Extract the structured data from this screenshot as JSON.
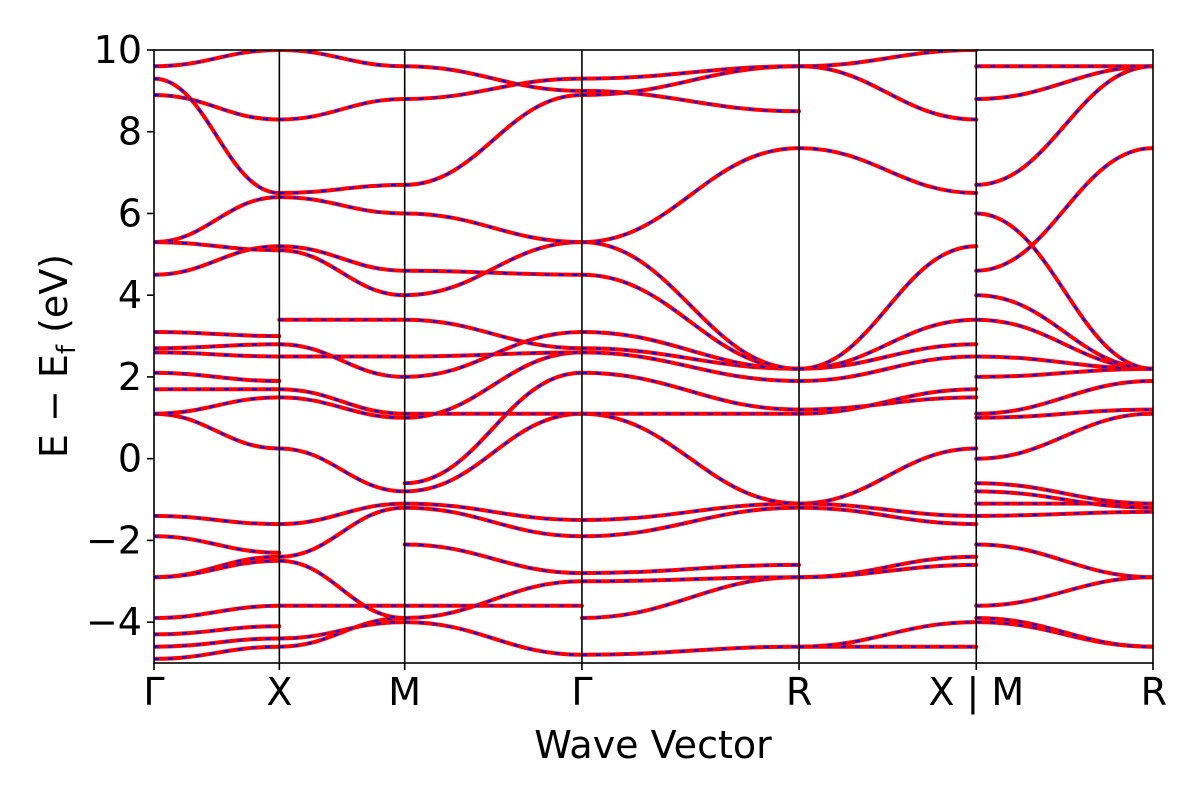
{
  "chart_data": {
    "type": "line",
    "xlabel": "Wave Vector",
    "ylabel": {
      "main": "E − E",
      "subscript": "f",
      "unit": " (eV)"
    },
    "ylim": [
      -5,
      10
    ],
    "yticks": [
      10,
      8,
      6,
      4,
      2,
      0,
      -2,
      -4
    ],
    "ytick_labels": [
      "10",
      "8",
      "6",
      "4",
      "2",
      "0",
      "−2",
      "−4"
    ],
    "kpoints": [
      {
        "label": "Γ",
        "pos": 0.0
      },
      {
        "label": "X",
        "pos": 1.0
      },
      {
        "label": "M",
        "pos": 2.0
      },
      {
        "label": "Γ",
        "pos": 3.414
      },
      {
        "label": "R",
        "pos": 5.146
      },
      {
        "label": "X | M",
        "pos": 6.56
      },
      {
        "label": "R",
        "pos": 7.97
      }
    ],
    "segments": [
      {
        "x": [
          0.0,
          1.0
        ],
        "bands": [
          [
            -4.9,
            -4.6
          ],
          [
            -4.6,
            -4.4
          ],
          [
            -4.3,
            -4.1
          ],
          [
            -3.9,
            -3.6
          ],
          [
            -2.9,
            -2.4
          ],
          [
            -2.9,
            -2.5
          ],
          [
            -1.9,
            -2.3
          ],
          [
            -1.4,
            -1.6
          ],
          [
            1.1,
            0.25
          ],
          [
            1.1,
            1.5
          ],
          [
            1.7,
            1.7
          ],
          [
            2.1,
            1.9
          ],
          [
            2.6,
            2.5
          ],
          [
            2.7,
            2.8
          ],
          [
            3.1,
            3.0
          ],
          [
            4.5,
            5.2
          ],
          [
            5.3,
            5.1
          ],
          [
            5.3,
            6.4
          ],
          [
            8.9,
            8.3
          ],
          [
            9.3,
            6.5
          ],
          [
            9.6,
            10.0
          ]
        ]
      },
      {
        "x": [
          1.0,
          2.0
        ],
        "bands": [
          [
            -4.6,
            -3.9
          ],
          [
            -4.4,
            -4.0
          ],
          [
            -3.6,
            -3.6
          ],
          [
            -2.4,
            -1.2
          ],
          [
            -2.5,
            -3.9
          ],
          [
            -1.6,
            -1.1
          ],
          [
            0.25,
            -0.8
          ],
          [
            1.5,
            1.0
          ],
          [
            1.7,
            1.1
          ],
          [
            2.5,
            2.5
          ],
          [
            2.8,
            2.0
          ],
          [
            3.4,
            3.4
          ],
          [
            5.2,
            4.6
          ],
          [
            5.1,
            4.0
          ],
          [
            6.4,
            6.0
          ],
          [
            6.5,
            6.7
          ],
          [
            8.3,
            8.8
          ],
          [
            10.0,
            9.6
          ]
        ]
      },
      {
        "x": [
          2.0,
          3.414
        ],
        "bands": [
          [
            -4.0,
            -4.8
          ],
          [
            -3.9,
            -3.0
          ],
          [
            -3.6,
            -3.6
          ],
          [
            -2.1,
            -2.8
          ],
          [
            -1.2,
            -1.9
          ],
          [
            -1.1,
            -1.5
          ],
          [
            -0.8,
            1.1
          ],
          [
            -0.6,
            2.1
          ],
          [
            1.0,
            2.6
          ],
          [
            1.1,
            1.1
          ],
          [
            2.0,
            3.1
          ],
          [
            2.5,
            2.6
          ],
          [
            3.4,
            2.7
          ],
          [
            4.0,
            5.3
          ],
          [
            4.6,
            4.5
          ],
          [
            6.0,
            5.3
          ],
          [
            6.7,
            8.9
          ],
          [
            8.8,
            9.3
          ],
          [
            9.6,
            9.0
          ]
        ]
      },
      {
        "x": [
          3.414,
          5.146
        ],
        "bands": [
          [
            -4.8,
            -4.6
          ],
          [
            -3.9,
            -2.9
          ],
          [
            -3.0,
            -2.9
          ],
          [
            -2.8,
            -2.6
          ],
          [
            -1.9,
            -1.2
          ],
          [
            -1.5,
            -1.1
          ],
          [
            1.1,
            -1.1
          ],
          [
            1.1,
            1.1
          ],
          [
            2.1,
            1.2
          ],
          [
            2.6,
            1.9
          ],
          [
            2.7,
            2.2
          ],
          [
            3.1,
            2.2
          ],
          [
            4.5,
            2.2
          ],
          [
            5.3,
            7.6
          ],
          [
            5.3,
            2.2
          ],
          [
            8.9,
            9.6
          ],
          [
            9.3,
            9.6
          ],
          [
            9.0,
            8.5
          ]
        ]
      },
      {
        "x": [
          5.146,
          6.56
        ],
        "bands": [
          [
            -4.6,
            -4.6
          ],
          [
            -4.6,
            -4.0
          ],
          [
            -2.9,
            -2.4
          ],
          [
            -2.9,
            -2.6
          ],
          [
            -1.1,
            0.25
          ],
          [
            -1.1,
            -1.4
          ],
          [
            -1.2,
            -1.6
          ],
          [
            1.1,
            1.7
          ],
          [
            1.2,
            1.5
          ],
          [
            1.9,
            2.5
          ],
          [
            2.2,
            2.8
          ],
          [
            2.2,
            3.4
          ],
          [
            2.2,
            5.2
          ],
          [
            7.6,
            6.5
          ],
          [
            9.6,
            8.3
          ],
          [
            9.6,
            10.0
          ]
        ]
      },
      {
        "x": [
          6.56,
          7.97
        ],
        "bands": [
          [
            -4.0,
            -4.6
          ],
          [
            -3.9,
            -4.6
          ],
          [
            -3.6,
            -2.9
          ],
          [
            -2.1,
            -2.9
          ],
          [
            -1.4,
            -1.3
          ],
          [
            -1.1,
            -1.1
          ],
          [
            -0.8,
            -1.2
          ],
          [
            -0.6,
            -1.1
          ],
          [
            0.0,
            1.1
          ],
          [
            1.0,
            1.2
          ],
          [
            1.1,
            1.9
          ],
          [
            2.0,
            2.2
          ],
          [
            2.5,
            2.2
          ],
          [
            3.4,
            2.2
          ],
          [
            4.0,
            2.2
          ],
          [
            4.6,
            7.6
          ],
          [
            6.0,
            2.2
          ],
          [
            6.7,
            9.6
          ],
          [
            8.8,
            9.6
          ],
          [
            9.6,
            9.6
          ]
        ]
      }
    ],
    "colors": {
      "band_main": "#ff0000",
      "band_overlay": "#0000ff",
      "axis": "#000000"
    }
  }
}
